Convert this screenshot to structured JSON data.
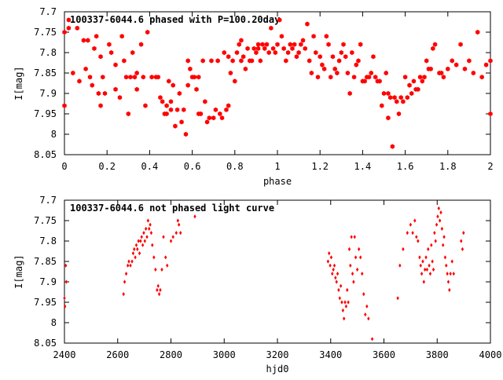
{
  "chart_data": [
    {
      "type": "scatter",
      "title": "100337-6044.6 phased with P=100.20day",
      "xlabel": "phase",
      "ylabel": "I[mag]",
      "xlim": [
        0,
        2
      ],
      "ylim": [
        8.05,
        7.7
      ],
      "y_inverted": true,
      "grid": false,
      "x_ticks": [
        0,
        0.2,
        0.4,
        0.6,
        0.8,
        1,
        1.2,
        1.4,
        1.6,
        1.8,
        2
      ],
      "x_tick_labels": [
        "0",
        "0.2",
        "0.4",
        "0.6",
        "0.8",
        "1",
        "1.2",
        "1.4",
        "1.6",
        "1.8",
        "2"
      ],
      "y_ticks": [
        7.7,
        7.75,
        7.8,
        7.85,
        7.9,
        7.95,
        8,
        8.05
      ],
      "y_tick_labels": [
        "7.7",
        "7.75",
        "7.8",
        "7.85",
        "7.9",
        "7.95",
        "8",
        "8.05"
      ],
      "marker_color": "#ff0000",
      "marker": "filled-hexagon",
      "points": [
        [
          0.0,
          7.93
        ],
        [
          0.0,
          7.75
        ],
        [
          0.02,
          7.74
        ],
        [
          0.02,
          7.72
        ],
        [
          0.04,
          7.85
        ],
        [
          0.06,
          7.74
        ],
        [
          0.07,
          7.87
        ],
        [
          0.09,
          7.77
        ],
        [
          0.1,
          7.84
        ],
        [
          0.11,
          7.77
        ],
        [
          0.12,
          7.86
        ],
        [
          0.13,
          7.88
        ],
        [
          0.14,
          7.79
        ],
        [
          0.15,
          7.76
        ],
        [
          0.16,
          7.9
        ],
        [
          0.17,
          7.93
        ],
        [
          0.17,
          7.81
        ],
        [
          0.18,
          7.86
        ],
        [
          0.19,
          7.9
        ],
        [
          0.21,
          7.78
        ],
        [
          0.22,
          7.8
        ],
        [
          0.24,
          7.83
        ],
        [
          0.24,
          7.89
        ],
        [
          0.26,
          7.91
        ],
        [
          0.27,
          7.76
        ],
        [
          0.28,
          7.82
        ],
        [
          0.29,
          7.86
        ],
        [
          0.3,
          7.95
        ],
        [
          0.31,
          7.86
        ],
        [
          0.32,
          7.8
        ],
        [
          0.33,
          7.86
        ],
        [
          0.34,
          7.85
        ],
        [
          0.34,
          7.89
        ],
        [
          0.36,
          7.78
        ],
        [
          0.37,
          7.86
        ],
        [
          0.38,
          7.93
        ],
        [
          0.39,
          7.75
        ],
        [
          0.41,
          7.86
        ],
        [
          0.43,
          7.86
        ],
        [
          0.44,
          7.86
        ],
        [
          0.45,
          7.91
        ],
        [
          0.46,
          7.92
        ],
        [
          0.47,
          7.95
        ],
        [
          0.48,
          7.93
        ],
        [
          0.48,
          7.95
        ],
        [
          0.49,
          7.87
        ],
        [
          0.5,
          7.94
        ],
        [
          0.5,
          7.92
        ],
        [
          0.51,
          7.88
        ],
        [
          0.52,
          7.98
        ],
        [
          0.53,
          7.94
        ],
        [
          0.54,
          7.9
        ],
        [
          0.55,
          7.97
        ],
        [
          0.56,
          7.94
        ],
        [
          0.57,
          8.0
        ],
        [
          0.58,
          7.88
        ],
        [
          0.58,
          7.82
        ],
        [
          0.59,
          7.84
        ],
        [
          0.6,
          7.86
        ],
        [
          0.61,
          7.86
        ],
        [
          0.62,
          7.89
        ],
        [
          0.63,
          7.95
        ],
        [
          0.63,
          7.86
        ],
        [
          0.64,
          7.95
        ],
        [
          0.65,
          7.82
        ],
        [
          0.66,
          7.92
        ],
        [
          0.67,
          7.97
        ],
        [
          0.68,
          7.96
        ],
        [
          0.69,
          7.82
        ],
        [
          0.7,
          7.96
        ],
        [
          0.71,
          7.94
        ],
        [
          0.72,
          7.82
        ],
        [
          0.73,
          7.95
        ],
        [
          0.74,
          7.96
        ],
        [
          0.75,
          7.8
        ],
        [
          0.76,
          7.94
        ],
        [
          0.77,
          7.93
        ],
        [
          0.77,
          7.81
        ],
        [
          0.78,
          7.85
        ],
        [
          0.79,
          7.82
        ],
        [
          0.8,
          7.87
        ],
        [
          0.81,
          7.8
        ],
        [
          0.82,
          7.78
        ],
        [
          0.83,
          7.82
        ],
        [
          0.83,
          7.77
        ],
        [
          0.84,
          7.81
        ],
        [
          0.85,
          7.84
        ],
        [
          0.86,
          7.79
        ],
        [
          0.87,
          7.82
        ],
        [
          0.88,
          7.82
        ],
        [
          0.89,
          7.79
        ],
        [
          0.9,
          7.8
        ],
        [
          0.91,
          7.79
        ],
        [
          0.91,
          7.78
        ],
        [
          0.92,
          7.82
        ],
        [
          0.93,
          7.78
        ],
        [
          0.94,
          7.79
        ],
        [
          0.95,
          7.78
        ],
        [
          0.96,
          7.8
        ],
        [
          0.97,
          7.74
        ],
        [
          0.98,
          7.79
        ],
        [
          0.99,
          7.8
        ],
        [
          1.0,
          7.78
        ],
        [
          1.01,
          7.72
        ],
        [
          1.02,
          7.76
        ],
        [
          1.03,
          7.79
        ],
        [
          1.04,
          7.82
        ],
        [
          1.05,
          7.8
        ],
        [
          1.06,
          7.78
        ],
        [
          1.07,
          7.79
        ],
        [
          1.08,
          7.78
        ],
        [
          1.09,
          7.81
        ],
        [
          1.1,
          7.8
        ],
        [
          1.11,
          7.78
        ],
        [
          1.12,
          7.77
        ],
        [
          1.13,
          7.79
        ],
        [
          1.14,
          7.73
        ],
        [
          1.15,
          7.82
        ],
        [
          1.16,
          7.85
        ],
        [
          1.17,
          7.76
        ],
        [
          1.18,
          7.8
        ],
        [
          1.19,
          7.86
        ],
        [
          1.2,
          7.81
        ],
        [
          1.21,
          7.83
        ],
        [
          1.22,
          7.84
        ],
        [
          1.23,
          7.76
        ],
        [
          1.24,
          7.78
        ],
        [
          1.25,
          7.86
        ],
        [
          1.26,
          7.81
        ],
        [
          1.27,
          7.84
        ],
        [
          1.28,
          7.85
        ],
        [
          1.29,
          7.82
        ],
        [
          1.3,
          7.8
        ],
        [
          1.31,
          7.78
        ],
        [
          1.32,
          7.81
        ],
        [
          1.33,
          7.85
        ],
        [
          1.34,
          7.9
        ],
        [
          1.35,
          7.8
        ],
        [
          1.36,
          7.86
        ],
        [
          1.37,
          7.83
        ],
        [
          1.38,
          7.82
        ],
        [
          1.39,
          7.78
        ],
        [
          1.4,
          7.87
        ],
        [
          1.41,
          7.87
        ],
        [
          1.42,
          7.86
        ],
        [
          1.43,
          7.86
        ],
        [
          1.44,
          7.85
        ],
        [
          1.45,
          7.81
        ],
        [
          1.46,
          7.86
        ],
        [
          1.47,
          7.87
        ],
        [
          1.48,
          7.87
        ],
        [
          1.49,
          7.93
        ],
        [
          1.5,
          7.9
        ],
        [
          1.51,
          7.85
        ],
        [
          1.52,
          7.9
        ],
        [
          1.52,
          7.96
        ],
        [
          1.53,
          7.91
        ],
        [
          1.54,
          8.03
        ],
        [
          1.55,
          7.91
        ],
        [
          1.56,
          7.92
        ],
        [
          1.57,
          7.95
        ],
        [
          1.58,
          7.91
        ],
        [
          1.59,
          7.92
        ],
        [
          1.6,
          7.86
        ],
        [
          1.61,
          7.91
        ],
        [
          1.62,
          7.88
        ],
        [
          1.63,
          7.9
        ],
        [
          1.64,
          7.87
        ],
        [
          1.65,
          7.89
        ],
        [
          1.66,
          7.89
        ],
        [
          1.67,
          7.86
        ],
        [
          1.68,
          7.87
        ],
        [
          1.69,
          7.86
        ],
        [
          1.7,
          7.82
        ],
        [
          1.71,
          7.84
        ],
        [
          1.72,
          7.84
        ],
        [
          1.73,
          7.79
        ],
        [
          1.74,
          7.78
        ],
        [
          1.76,
          7.85
        ],
        [
          1.77,
          7.85
        ],
        [
          1.78,
          7.86
        ],
        [
          1.8,
          7.84
        ],
        [
          1.82,
          7.82
        ],
        [
          1.84,
          7.83
        ],
        [
          1.86,
          7.78
        ],
        [
          1.88,
          7.84
        ],
        [
          1.9,
          7.82
        ],
        [
          1.92,
          7.85
        ],
        [
          1.94,
          7.75
        ],
        [
          1.96,
          7.86
        ],
        [
          1.98,
          7.83
        ],
        [
          2.0,
          7.82
        ],
        [
          2.0,
          7.95
        ]
      ]
    },
    {
      "type": "scatter",
      "title": "100337-6044.6 not phased light curve",
      "xlabel": "hjd0",
      "ylabel": "I[mag]",
      "xlim": [
        2400,
        4000
      ],
      "ylim": [
        8.05,
        7.7
      ],
      "y_inverted": true,
      "grid": false,
      "x_ticks": [
        2400,
        2600,
        2800,
        3000,
        3200,
        3400,
        3600,
        3800,
        4000
      ],
      "x_tick_labels": [
        "2400",
        "2600",
        "2800",
        "3000",
        "3200",
        "3400",
        "3600",
        "3800",
        "4000"
      ],
      "y_ticks": [
        7.7,
        7.75,
        7.8,
        7.85,
        7.9,
        7.95,
        8,
        8.05
      ],
      "y_tick_labels": [
        "7.7",
        "7.75",
        "7.8",
        "7.85",
        "7.9",
        "7.95",
        "8",
        "8.05"
      ],
      "marker_color": "#ff0000",
      "marker": "diamond",
      "points": [
        [
          2400,
          7.94
        ],
        [
          2402,
          7.96
        ],
        [
          2405,
          7.86
        ],
        [
          2407,
          7.9
        ],
        [
          2622,
          7.93
        ],
        [
          2626,
          7.9
        ],
        [
          2632,
          7.88
        ],
        [
          2638,
          7.86
        ],
        [
          2642,
          7.85
        ],
        [
          2648,
          7.86
        ],
        [
          2654,
          7.85
        ],
        [
          2658,
          7.83
        ],
        [
          2662,
          7.82
        ],
        [
          2666,
          7.84
        ],
        [
          2670,
          7.81
        ],
        [
          2674,
          7.82
        ],
        [
          2678,
          7.8
        ],
        [
          2682,
          7.83
        ],
        [
          2686,
          7.8
        ],
        [
          2690,
          7.79
        ],
        [
          2694,
          7.81
        ],
        [
          2698,
          7.78
        ],
        [
          2702,
          7.8
        ],
        [
          2706,
          7.77
        ],
        [
          2710,
          7.79
        ],
        [
          2714,
          7.75
        ],
        [
          2718,
          7.77
        ],
        [
          2722,
          7.76
        ],
        [
          2726,
          7.78
        ],
        [
          2730,
          7.81
        ],
        [
          2736,
          7.84
        ],
        [
          2742,
          7.87
        ],
        [
          2748,
          7.92
        ],
        [
          2752,
          7.91
        ],
        [
          2756,
          7.93
        ],
        [
          2760,
          7.92
        ],
        [
          2766,
          7.87
        ],
        [
          2772,
          7.79
        ],
        [
          2780,
          7.84
        ],
        [
          2786,
          7.86
        ],
        [
          2800,
          7.8
        ],
        [
          2808,
          7.79
        ],
        [
          2820,
          7.78
        ],
        [
          2826,
          7.75
        ],
        [
          2830,
          7.76
        ],
        [
          2836,
          7.78
        ],
        [
          2890,
          7.74
        ],
        [
          3390,
          7.85
        ],
        [
          3394,
          7.83
        ],
        [
          3398,
          7.86
        ],
        [
          3402,
          7.84
        ],
        [
          3406,
          7.88
        ],
        [
          3410,
          7.87
        ],
        [
          3414,
          7.86
        ],
        [
          3418,
          7.89
        ],
        [
          3422,
          7.9
        ],
        [
          3426,
          7.88
        ],
        [
          3430,
          7.92
        ],
        [
          3434,
          7.94
        ],
        [
          3438,
          7.91
        ],
        [
          3442,
          7.95
        ],
        [
          3446,
          7.97
        ],
        [
          3450,
          7.99
        ],
        [
          3454,
          7.95
        ],
        [
          3458,
          7.96
        ],
        [
          3462,
          7.92
        ],
        [
          3466,
          7.95
        ],
        [
          3470,
          7.82
        ],
        [
          3474,
          7.86
        ],
        [
          3478,
          7.79
        ],
        [
          3482,
          7.88
        ],
        [
          3486,
          7.9
        ],
        [
          3490,
          7.79
        ],
        [
          3494,
          7.84
        ],
        [
          3500,
          7.87
        ],
        [
          3506,
          7.82
        ],
        [
          3512,
          7.84
        ],
        [
          3518,
          7.88
        ],
        [
          3524,
          7.93
        ],
        [
          3530,
          7.98
        ],
        [
          3536,
          7.96
        ],
        [
          3542,
          7.99
        ],
        [
          3556,
          8.04
        ],
        [
          3652,
          7.94
        ],
        [
          3660,
          7.86
        ],
        [
          3672,
          7.82
        ],
        [
          3688,
          7.78
        ],
        [
          3700,
          7.76
        ],
        [
          3708,
          7.78
        ],
        [
          3716,
          7.75
        ],
        [
          3722,
          7.79
        ],
        [
          3728,
          7.8
        ],
        [
          3734,
          7.84
        ],
        [
          3738,
          7.86
        ],
        [
          3742,
          7.88
        ],
        [
          3746,
          7.85
        ],
        [
          3750,
          7.9
        ],
        [
          3754,
          7.87
        ],
        [
          3758,
          7.84
        ],
        [
          3762,
          7.87
        ],
        [
          3766,
          7.82
        ],
        [
          3770,
          7.86
        ],
        [
          3774,
          7.88
        ],
        [
          3778,
          7.81
        ],
        [
          3782,
          7.85
        ],
        [
          3786,
          7.87
        ],
        [
          3790,
          7.78
        ],
        [
          3794,
          7.8
        ],
        [
          3798,
          7.76
        ],
        [
          3802,
          7.74
        ],
        [
          3806,
          7.72
        ],
        [
          3810,
          7.75
        ],
        [
          3814,
          7.73
        ],
        [
          3818,
          7.77
        ],
        [
          3822,
          7.81
        ],
        [
          3826,
          7.79
        ],
        [
          3830,
          7.84
        ],
        [
          3834,
          7.86
        ],
        [
          3838,
          7.88
        ],
        [
          3842,
          7.9
        ],
        [
          3846,
          7.92
        ],
        [
          3850,
          7.88
        ],
        [
          3856,
          7.85
        ],
        [
          3862,
          7.88
        ],
        [
          3890,
          7.8
        ],
        [
          3895,
          7.82
        ],
        [
          3899,
          7.78
        ]
      ]
    }
  ]
}
